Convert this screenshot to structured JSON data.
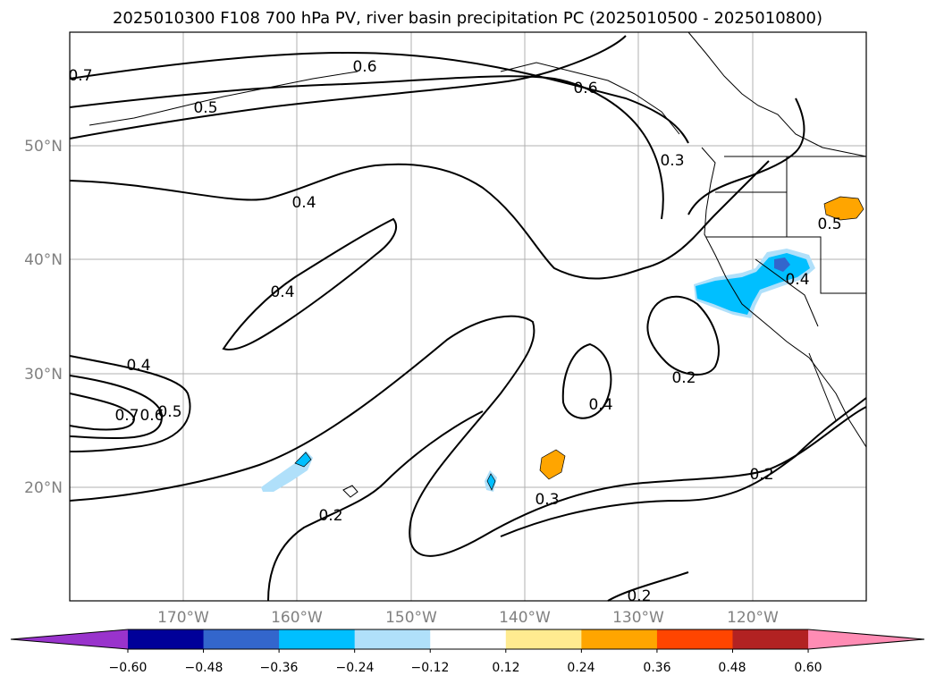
{
  "chart_data": {
    "type": "contour-map",
    "title": "2025010300 F108 700 hPa PV, river basin precipitation PC (2025010500 - 2025010800)",
    "lat_labels": [
      "50°N",
      "40°N",
      "30°N",
      "20°N"
    ],
    "lon_labels": [
      "170°W",
      "160°W",
      "150°W",
      "140°W",
      "130°W",
      "120°W"
    ],
    "extent": {
      "lon": [
        -180,
        -110
      ],
      "lat": [
        10,
        60
      ]
    },
    "grid": true,
    "contour_labels": [
      "0.7",
      "0.6",
      "0.5",
      "0.6",
      "0.3",
      "0.4",
      "0.4",
      "0.4",
      "0.7",
      "0.6",
      "0.5",
      "0.2",
      "0.3",
      "0.4",
      "0.2",
      "0.4",
      "0.5",
      "0.2",
      "0.2"
    ],
    "colorbar": {
      "ticks": [
        "−0.60",
        "−0.48",
        "−0.36",
        "−0.24",
        "−0.12",
        "0.12",
        "0.24",
        "0.36",
        "0.48",
        "0.60"
      ],
      "colors": [
        "#9933CC",
        "#000099",
        "#3366CC",
        "#00BFFF",
        "#B0E0FA",
        "#FFFFFF",
        "#FFEB90",
        "#FFA500",
        "#FF4500",
        "#B22222",
        "#FF8CB4"
      ],
      "extend": "both"
    }
  }
}
